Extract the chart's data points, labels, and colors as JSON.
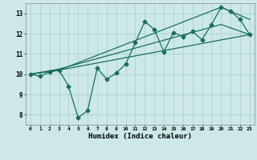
{
  "xlabel": "Humidex (Indice chaleur)",
  "bg_color": "#cce8e8",
  "line_color": "#1a6e5e",
  "grid_color": "#aacccc",
  "xlim": [
    -0.5,
    23.5
  ],
  "ylim": [
    7.5,
    13.5
  ],
  "xticks": [
    0,
    1,
    2,
    3,
    4,
    5,
    6,
    7,
    8,
    9,
    10,
    11,
    12,
    13,
    14,
    15,
    16,
    17,
    18,
    19,
    20,
    21,
    22,
    23
  ],
  "yticks": [
    8,
    9,
    10,
    11,
    12,
    13
  ],
  "line1_x": [
    0,
    1,
    2,
    3,
    4,
    5,
    6,
    7,
    8,
    9,
    10,
    11,
    12,
    13,
    14,
    15,
    16,
    17,
    18,
    19,
    20,
    21,
    22,
    23
  ],
  "line1_y": [
    10.0,
    9.9,
    10.1,
    10.2,
    9.4,
    7.85,
    8.2,
    10.3,
    9.75,
    10.05,
    10.5,
    11.55,
    12.6,
    12.2,
    11.1,
    12.05,
    11.85,
    12.1,
    11.7,
    12.45,
    13.3,
    13.1,
    12.7,
    11.95
  ],
  "line2_x": [
    0,
    3,
    23
  ],
  "line2_y": [
    10.0,
    10.2,
    11.95
  ],
  "line3_x": [
    0,
    3,
    20,
    23
  ],
  "line3_y": [
    10.0,
    10.2,
    13.3,
    12.7
  ],
  "line4_x": [
    0,
    3,
    20,
    23
  ],
  "line4_y": [
    10.0,
    10.25,
    12.45,
    11.95
  ]
}
